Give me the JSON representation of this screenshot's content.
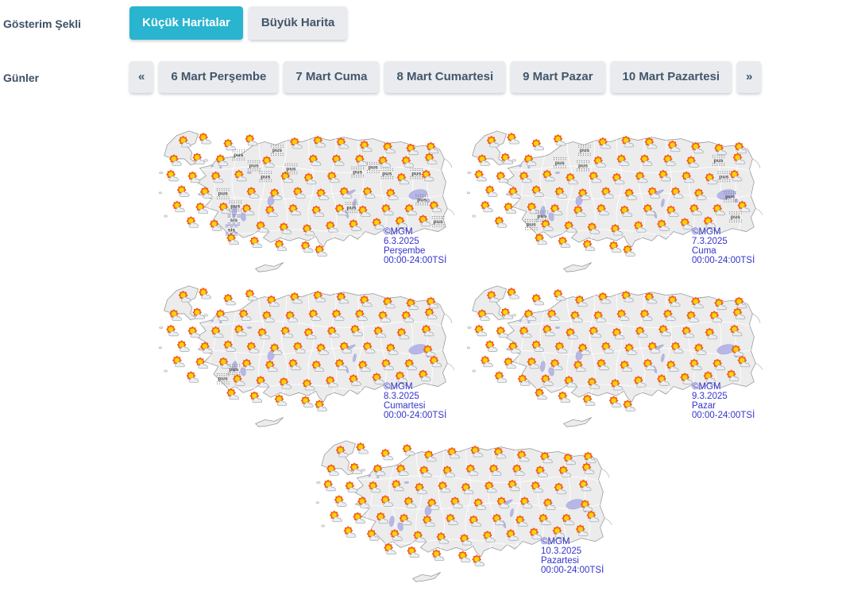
{
  "display_mode": {
    "label": "Gösterim Şekli",
    "options": [
      {
        "label": "Küçük Haritalar",
        "active": true
      },
      {
        "label": "Büyük Harita",
        "active": false
      }
    ]
  },
  "days": {
    "label": "Günler",
    "prev": "«",
    "next": "»",
    "items": [
      "6 Mart Perşembe",
      "7 Mart Cuma",
      "8 Mart Cumartesi",
      "9 Mart Pazar",
      "10 Mart Pazartesi"
    ]
  },
  "weather_icons": {
    "partly_cloudy": "sun-with-cloud-icon",
    "haze_label": "pus",
    "fog_label": "sis"
  },
  "colors": {
    "accent": "#29b4cf",
    "button_bg": "#e9ebee",
    "button_text": "#42566b",
    "label_text": "#3c5064",
    "caption_text": "#3333cc",
    "land": "#ececec",
    "lake": "#b6b7e6"
  },
  "maps": [
    {
      "credit": "©MGM",
      "date": "6.3.2025",
      "day": "Perşembe",
      "hours": "00:00-24:00TSİ"
    },
    {
      "credit": "©MGM",
      "date": "7.3.2025",
      "day": "Cuma",
      "hours": "00:00-24:00TSİ"
    },
    {
      "credit": "©MGM",
      "date": "8.3.2025",
      "day": "Cumartesi",
      "hours": "00:00-24:00TSİ"
    },
    {
      "credit": "©MGM",
      "date": "9.3.2025",
      "day": "Pazar",
      "hours": "00:00-24:00TSİ"
    },
    {
      "credit": "©MGM",
      "date": "10.3.2025",
      "day": "Pazartesi",
      "hours": "00:00-24:00TSİ"
    }
  ]
}
